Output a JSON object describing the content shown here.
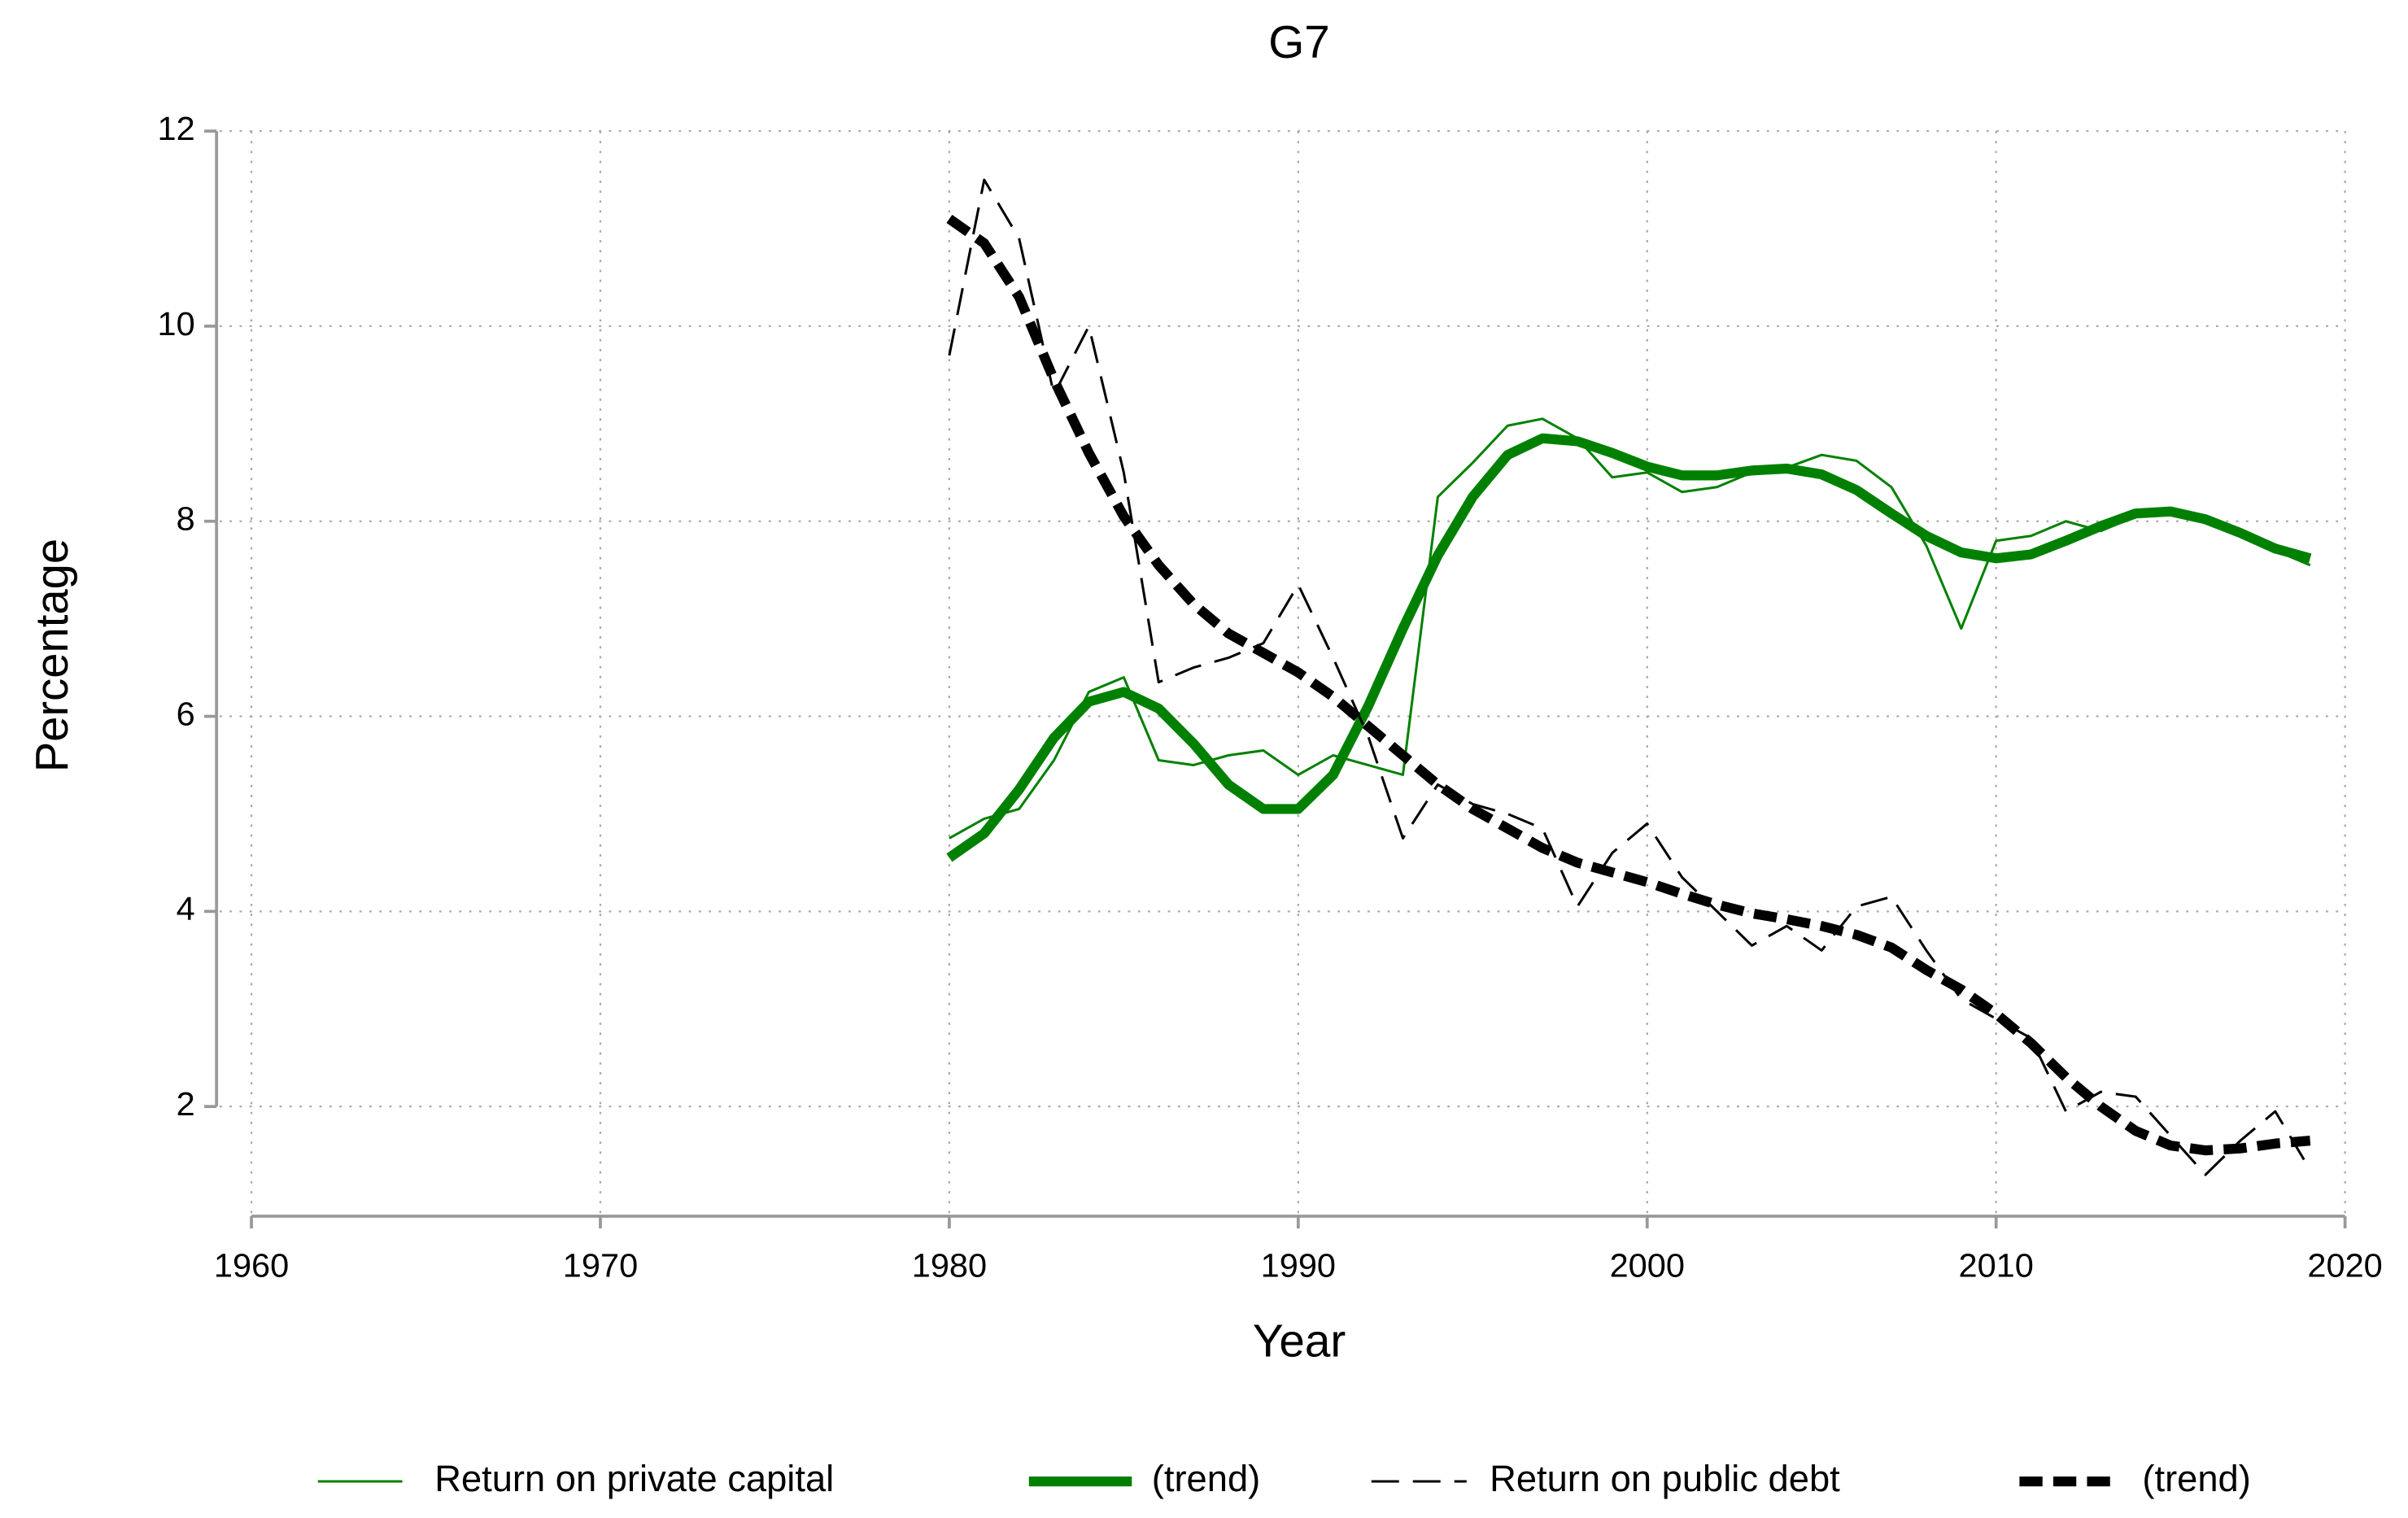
{
  "chart_data": {
    "type": "line",
    "title": "G7",
    "xlabel": "Year",
    "ylabel": "Percentage",
    "x": [
      1980,
      1981,
      1982,
      1983,
      1984,
      1985,
      1986,
      1987,
      1988,
      1989,
      1990,
      1991,
      1992,
      1993,
      1994,
      1995,
      1996,
      1997,
      1998,
      1999,
      2000,
      2001,
      2002,
      2003,
      2004,
      2005,
      2006,
      2007,
      2008,
      2009,
      2010,
      2011,
      2012,
      2013,
      2014,
      2015,
      2016,
      2017,
      2018,
      2019
    ],
    "series": [
      {
        "name": "Return on private capital",
        "color": "#008000",
        "style": "solid",
        "width": "thin",
        "values": [
          4.75,
          4.95,
          5.05,
          5.55,
          6.25,
          6.4,
          5.55,
          5.5,
          5.6,
          5.65,
          5.4,
          5.6,
          5.5,
          5.4,
          8.25,
          8.6,
          8.98,
          9.05,
          8.85,
          8.45,
          8.5,
          8.3,
          8.35,
          8.5,
          8.55,
          8.68,
          8.62,
          8.35,
          7.75,
          6.9,
          7.8,
          7.85,
          8.0,
          7.9,
          8.05,
          8.1,
          8.0,
          7.85,
          7.7,
          7.55
        ]
      },
      {
        "name": "(trend)",
        "color": "#008000",
        "style": "solid",
        "width": "thick",
        "values": [
          4.55,
          4.8,
          5.25,
          5.78,
          6.15,
          6.25,
          6.08,
          5.72,
          5.3,
          5.05,
          5.05,
          5.4,
          6.1,
          6.9,
          7.65,
          8.25,
          8.68,
          8.85,
          8.82,
          8.7,
          8.56,
          8.47,
          8.47,
          8.52,
          8.54,
          8.48,
          8.32,
          8.08,
          7.85,
          7.68,
          7.62,
          7.66,
          7.8,
          7.95,
          8.08,
          8.1,
          8.02,
          7.88,
          7.72,
          7.62
        ]
      },
      {
        "name": "Return on public debt",
        "color": "#000000",
        "style": "dashed",
        "width": "thin",
        "values": [
          9.7,
          11.5,
          10.9,
          9.3,
          10.0,
          8.5,
          6.35,
          6.5,
          6.6,
          6.75,
          7.35,
          6.6,
          5.8,
          4.75,
          5.3,
          5.1,
          5.0,
          4.85,
          4.05,
          4.6,
          4.9,
          4.35,
          4.0,
          3.65,
          3.85,
          3.6,
          4.05,
          4.15,
          3.6,
          3.1,
          2.9,
          2.7,
          1.95,
          2.15,
          2.1,
          1.7,
          1.3,
          1.65,
          1.95,
          1.35
        ]
      },
      {
        "name": "(trend)",
        "color": "#000000",
        "style": "dashed",
        "width": "thick",
        "values": [
          11.1,
          10.85,
          10.3,
          9.45,
          8.7,
          8.05,
          7.55,
          7.15,
          6.85,
          6.65,
          6.45,
          6.2,
          5.9,
          5.6,
          5.3,
          5.05,
          4.85,
          4.65,
          4.5,
          4.4,
          4.3,
          4.18,
          4.07,
          3.98,
          3.92,
          3.85,
          3.76,
          3.63,
          3.4,
          3.2,
          2.95,
          2.65,
          2.3,
          2.0,
          1.75,
          1.6,
          1.55,
          1.57,
          1.62,
          1.65
        ]
      }
    ],
    "xlim": [
      1959,
      2020
    ],
    "ylim": [
      0.875,
      12
    ],
    "xticks": [
      1960,
      1970,
      1980,
      1990,
      2000,
      2010,
      2020
    ],
    "yticks": [
      2,
      4,
      6,
      8,
      10,
      12
    ],
    "grid": true,
    "legend": "bottom"
  }
}
